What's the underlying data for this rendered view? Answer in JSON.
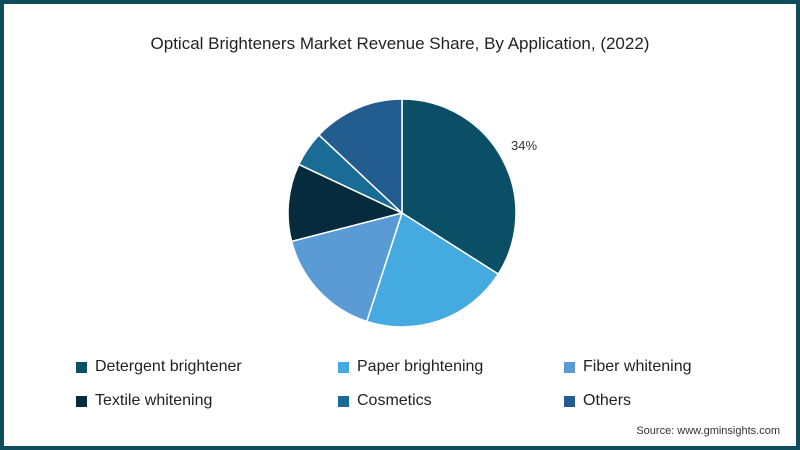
{
  "chart_data": {
    "type": "pie",
    "title": "Optical Brighteners Market Revenue Share, By Application, (2022)",
    "categories": [
      "Detergent brightener",
      "Paper brightening",
      "Fiber whitening",
      "Textile whitening",
      "Cosmetics",
      "Others"
    ],
    "values": [
      34,
      21,
      16,
      11,
      5,
      13
    ],
    "colors": [
      "#0b4f66",
      "#44aadf",
      "#5a9bd5",
      "#052b3c",
      "#1a6c96",
      "#235d8f"
    ],
    "data_labels": [
      {
        "category": "Detergent brightener",
        "label": "34%"
      }
    ],
    "legend_position": "bottom"
  },
  "legend": [
    {
      "label": "Detergent brightener",
      "color": "#0b4f66"
    },
    {
      "label": "Paper brightening",
      "color": "#44aadf"
    },
    {
      "label": "Fiber whitening",
      "color": "#5a9bd5"
    },
    {
      "label": "Textile whitening",
      "color": "#052b3c"
    },
    {
      "label": "Cosmetics",
      "color": "#1a6c96"
    },
    {
      "label": "Others",
      "color": "#235d8f"
    }
  ],
  "source": "Source: www.gminsights.com",
  "data_label": "34%"
}
